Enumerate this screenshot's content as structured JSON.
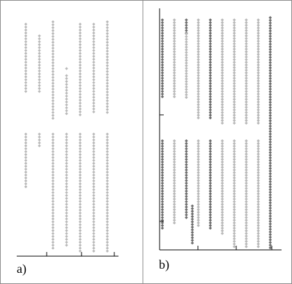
{
  "colors": {
    "light": "#b9b9b9",
    "dark": "#6e6e6e",
    "axis": "#000000",
    "border": "#8a8a8a"
  },
  "chart_data": [
    {
      "type": "scatter",
      "panel_label": "a)",
      "title": "",
      "xlabel": "",
      "ylabel": "",
      "grid": false,
      "series": [
        {
          "color": "light",
          "x": 1,
          "segments": [
            [
              0.02,
              0.32
            ],
            [
              0.49,
              0.72
            ]
          ]
        },
        {
          "color": "light",
          "x": 2,
          "segments": [
            [
              0.07,
              0.32
            ],
            [
              0.49,
              0.55
            ]
          ]
        },
        {
          "color": "light",
          "x": 3,
          "segments": [
            [
              0.01,
              0.43
            ],
            [
              0.49,
              0.98
            ]
          ]
        },
        {
          "color": "light",
          "x": 4,
          "segments": [
            [
              0.21,
              0.22
            ],
            [
              0.24,
              0.41
            ],
            [
              0.49,
              0.97
            ]
          ]
        },
        {
          "color": "light",
          "x": 5,
          "segments": [
            [
              0.02,
              0.41
            ],
            [
              0.49,
              1.0
            ]
          ]
        },
        {
          "color": "light",
          "x": 6,
          "segments": [
            [
              0.02,
              0.4
            ],
            [
              0.49,
              1.0
            ]
          ]
        },
        {
          "color": "light",
          "x": 7,
          "segments": [
            [
              0.01,
              0.4
            ],
            [
              0.49,
              1.0
            ]
          ]
        }
      ]
    },
    {
      "type": "scatter",
      "panel_label": "b)",
      "title": "",
      "xlabel": "",
      "ylabel": "",
      "grid": false,
      "series": [
        {
          "color": "dark",
          "x": 1,
          "segments": [
            [
              0.02,
              0.36
            ],
            [
              0.54,
              0.92
            ]
          ]
        },
        {
          "color": "light",
          "x": 2,
          "segments": [
            [
              0.02,
              0.36
            ],
            [
              0.54,
              0.9
            ]
          ]
        },
        {
          "color": "dark",
          "x": 3,
          "segments": [
            [
              0.02,
              0.08
            ],
            [
              0.54,
              0.88
            ]
          ]
        },
        {
          "color": "light",
          "x": 3,
          "segments": [
            [
              0.08,
              0.36
            ]
          ]
        },
        {
          "color": "dark",
          "x": 3.5,
          "segments": [
            [
              0.82,
              0.98
            ]
          ]
        },
        {
          "color": "light",
          "x": 4,
          "segments": [
            [
              0.02,
              0.45
            ],
            [
              0.54,
              0.91
            ]
          ]
        },
        {
          "color": "dark",
          "x": 5,
          "segments": [
            [
              0.02,
              0.45
            ],
            [
              0.54,
              0.92
            ]
          ]
        },
        {
          "color": "light",
          "x": 6,
          "segments": [
            [
              0.02,
              0.47
            ],
            [
              0.54,
              0.94
            ]
          ]
        },
        {
          "color": "light",
          "x": 7,
          "segments": [
            [
              0.02,
              0.47
            ],
            [
              0.54,
              1.0
            ]
          ]
        },
        {
          "color": "light",
          "x": 8,
          "segments": [
            [
              0.02,
              0.47
            ],
            [
              0.54,
              1.0
            ]
          ]
        },
        {
          "color": "light",
          "x": 9,
          "segments": [
            [
              0.02,
              0.47
            ],
            [
              0.54,
              1.0
            ]
          ]
        },
        {
          "color": "dark",
          "x": 10,
          "segments": [
            [
              0.01,
              1.0
            ]
          ]
        }
      ]
    }
  ]
}
